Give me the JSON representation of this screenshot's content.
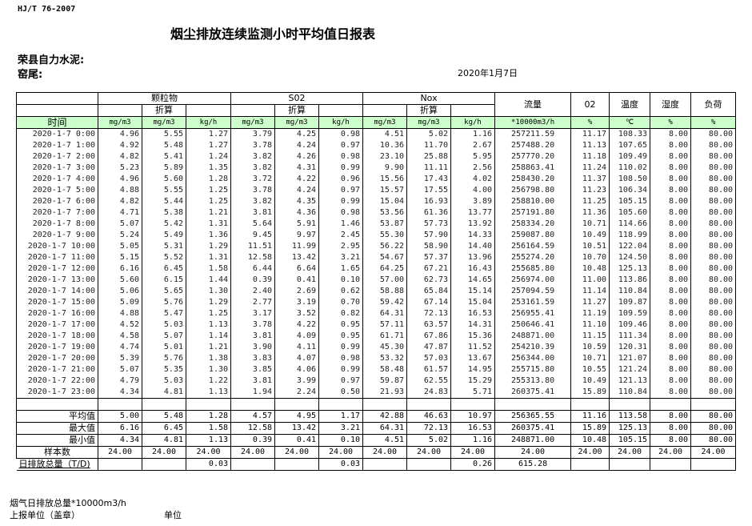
{
  "standard": "HJ/T  76-2007",
  "title": "烟尘排放连续监测小时平均值日报表",
  "company": "荣县自力水泥:",
  "kiln": "窑尾:",
  "date": "2020年1月7日",
  "header": {
    "groups": {
      "particulate": "颗粒物",
      "so2": "S02",
      "nox": "Nox",
      "flow": "流量",
      "o2": "02",
      "temp": "温度",
      "humidity": "湿度",
      "load": "负荷"
    },
    "converted": "折算",
    "time": "时间",
    "units": [
      "mg/m3",
      "mg/m3",
      "kg/h",
      "mg/m3",
      "mg/m3",
      "kg/h",
      "mg/m3",
      "mg/m3",
      "kg/h",
      "*10000m3/h",
      "%",
      "℃",
      "%",
      "%"
    ]
  },
  "colors": {
    "unit_row_bg": "#ccffcc"
  },
  "rows": [
    {
      "time": "2020-1-7 0:00",
      "values": [
        "4.96",
        "5.55",
        "1.27",
        "3.79",
        "4.25",
        "0.98",
        "4.51",
        "5.02",
        "1.16",
        "257211.59",
        "11.17",
        "108.33",
        "8.00",
        "80.00"
      ]
    },
    {
      "time": "2020-1-7 1:00",
      "values": [
        "4.92",
        "5.48",
        "1.27",
        "3.78",
        "4.24",
        "0.97",
        "10.36",
        "11.70",
        "2.67",
        "257488.20",
        "11.13",
        "107.65",
        "8.00",
        "80.00"
      ]
    },
    {
      "time": "2020-1-7 2:00",
      "values": [
        "4.82",
        "5.41",
        "1.24",
        "3.82",
        "4.26",
        "0.98",
        "23.10",
        "25.88",
        "5.95",
        "257770.20",
        "11.18",
        "109.49",
        "8.00",
        "80.00"
      ]
    },
    {
      "time": "2020-1-7 3:00",
      "values": [
        "5.23",
        "5.89",
        "1.35",
        "3.82",
        "4.31",
        "0.99",
        "9.90",
        "11.11",
        "2.56",
        "258863.41",
        "11.24",
        "110.02",
        "8.00",
        "80.00"
      ]
    },
    {
      "time": "2020-1-7 4:00",
      "values": [
        "4.96",
        "5.60",
        "1.28",
        "3.72",
        "4.22",
        "0.96",
        "15.56",
        "17.43",
        "4.02",
        "258430.20",
        "11.37",
        "108.50",
        "8.00",
        "80.00"
      ]
    },
    {
      "time": "2020-1-7 5:00",
      "values": [
        "4.88",
        "5.55",
        "1.25",
        "3.78",
        "4.24",
        "0.97",
        "15.57",
        "17.55",
        "4.00",
        "256798.80",
        "11.23",
        "106.34",
        "8.00",
        "80.00"
      ]
    },
    {
      "time": "2020-1-7 6:00",
      "values": [
        "4.82",
        "5.44",
        "1.25",
        "3.82",
        "4.35",
        "0.99",
        "15.04",
        "16.93",
        "3.89",
        "258810.00",
        "11.25",
        "105.15",
        "8.00",
        "80.00"
      ]
    },
    {
      "time": "2020-1-7 7:00",
      "values": [
        "4.71",
        "5.38",
        "1.21",
        "3.81",
        "4.36",
        "0.98",
        "53.56",
        "61.36",
        "13.77",
        "257191.80",
        "11.36",
        "105.60",
        "8.00",
        "80.00"
      ]
    },
    {
      "time": "2020-1-7 8:00",
      "values": [
        "5.07",
        "5.42",
        "1.31",
        "5.64",
        "5.91",
        "1.46",
        "53.87",
        "57.73",
        "13.92",
        "258334.20",
        "10.71",
        "114.66",
        "8.00",
        "80.00"
      ]
    },
    {
      "time": "2020-1-7 9:00",
      "values": [
        "5.24",
        "5.49",
        "1.36",
        "9.45",
        "9.97",
        "2.45",
        "55.30",
        "57.90",
        "14.33",
        "259087.80",
        "10.49",
        "118.99",
        "8.00",
        "80.00"
      ]
    },
    {
      "time": "2020-1-7 10:00",
      "values": [
        "5.05",
        "5.31",
        "1.29",
        "11.51",
        "11.99",
        "2.95",
        "56.22",
        "58.90",
        "14.40",
        "256164.59",
        "10.51",
        "122.04",
        "8.00",
        "80.00"
      ]
    },
    {
      "time": "2020-1-7 11:00",
      "values": [
        "5.15",
        "5.52",
        "1.31",
        "12.58",
        "13.42",
        "3.21",
        "54.67",
        "57.37",
        "13.96",
        "255274.20",
        "10.70",
        "124.50",
        "8.00",
        "80.00"
      ]
    },
    {
      "time": "2020-1-7 12:00",
      "values": [
        "6.16",
        "6.45",
        "1.58",
        "6.44",
        "6.64",
        "1.65",
        "64.25",
        "67.21",
        "16.43",
        "255685.80",
        "10.48",
        "125.13",
        "8.00",
        "80.00"
      ]
    },
    {
      "time": "2020-1-7 13:00",
      "values": [
        "5.60",
        "6.15",
        "1.44",
        "0.39",
        "0.41",
        "0.10",
        "57.00",
        "62.73",
        "14.65",
        "256974.00",
        "11.00",
        "113.86",
        "8.00",
        "80.00"
      ]
    },
    {
      "time": "2020-1-7 14:00",
      "values": [
        "5.06",
        "5.65",
        "1.30",
        "2.40",
        "2.69",
        "0.62",
        "58.88",
        "65.84",
        "15.14",
        "257094.59",
        "11.14",
        "110.84",
        "8.00",
        "80.00"
      ]
    },
    {
      "time": "2020-1-7 15:00",
      "values": [
        "5.09",
        "5.76",
        "1.29",
        "2.77",
        "3.19",
        "0.70",
        "59.42",
        "67.14",
        "15.04",
        "253161.59",
        "11.27",
        "109.87",
        "8.00",
        "80.00"
      ]
    },
    {
      "time": "2020-1-7 16:00",
      "values": [
        "4.88",
        "5.47",
        "1.25",
        "3.17",
        "3.52",
        "0.82",
        "64.31",
        "72.13",
        "16.53",
        "256955.41",
        "11.19",
        "109.59",
        "8.00",
        "80.00"
      ]
    },
    {
      "time": "2020-1-7 17:00",
      "values": [
        "4.52",
        "5.03",
        "1.13",
        "3.78",
        "4.22",
        "0.95",
        "57.11",
        "63.57",
        "14.31",
        "250646.41",
        "11.10",
        "109.46",
        "8.00",
        "80.00"
      ]
    },
    {
      "time": "2020-1-7 18:00",
      "values": [
        "4.58",
        "5.07",
        "1.14",
        "3.81",
        "4.09",
        "0.95",
        "61.71",
        "67.86",
        "15.36",
        "248871.00",
        "11.15",
        "111.34",
        "8.00",
        "80.00"
      ]
    },
    {
      "time": "2020-1-7 19:00",
      "values": [
        "4.74",
        "5.01",
        "1.21",
        "3.90",
        "4.11",
        "0.99",
        "45.30",
        "47.87",
        "11.52",
        "254210.39",
        "10.59",
        "120.31",
        "8.00",
        "80.00"
      ]
    },
    {
      "time": "2020-1-7 20:00",
      "values": [
        "5.39",
        "5.76",
        "1.38",
        "3.83",
        "4.07",
        "0.98",
        "53.32",
        "57.03",
        "13.67",
        "256344.00",
        "10.71",
        "121.07",
        "8.00",
        "80.00"
      ]
    },
    {
      "time": "2020-1-7 21:00",
      "values": [
        "5.07",
        "5.35",
        "1.30",
        "3.85",
        "4.06",
        "0.99",
        "58.48",
        "61.57",
        "14.95",
        "255715.80",
        "10.55",
        "121.24",
        "8.00",
        "80.00"
      ]
    },
    {
      "time": "2020-1-7 22:00",
      "values": [
        "4.79",
        "5.03",
        "1.22",
        "3.81",
        "3.99",
        "0.97",
        "59.87",
        "62.55",
        "15.29",
        "255313.80",
        "10.49",
        "121.13",
        "8.00",
        "80.00"
      ]
    },
    {
      "time": "2020-1-7 23:00",
      "values": [
        "4.34",
        "4.81",
        "1.13",
        "1.94",
        "2.24",
        "0.50",
        "21.93",
        "24.83",
        "5.71",
        "260375.41",
        "15.89",
        "110.84",
        "8.00",
        "80.00"
      ]
    }
  ],
  "summary": [
    {
      "label": "平均值",
      "values": [
        "5.00",
        "5.48",
        "1.28",
        "4.57",
        "4.95",
        "1.17",
        "42.88",
        "46.63",
        "10.97",
        "256365.55",
        "11.16",
        "113.58",
        "8.00",
        "80.00"
      ]
    },
    {
      "label": "最大值",
      "values": [
        "6.16",
        "6.45",
        "1.58",
        "12.58",
        "13.42",
        "3.21",
        "64.31",
        "72.13",
        "16.53",
        "260375.41",
        "15.89",
        "125.13",
        "8.00",
        "80.00"
      ]
    },
    {
      "label": "最小值",
      "values": [
        "4.34",
        "4.81",
        "1.13",
        "0.39",
        "0.41",
        "0.10",
        "4.51",
        "5.02",
        "1.16",
        "248871.00",
        "10.48",
        "105.15",
        "8.00",
        "80.00"
      ]
    },
    {
      "label": "样本数",
      "values": [
        "24.00",
        "24.00",
        "24.00",
        "24.00",
        "24.00",
        "24.00",
        "24.00",
        "24.00",
        "24.00",
        "24.00",
        "24.00",
        "24.00",
        "24.00",
        "24.00"
      ]
    },
    {
      "label": "日排放总量（T/D)",
      "values": [
        "",
        "",
        "0.03",
        "",
        "",
        "0.03",
        "",
        "",
        "0.26",
        "615.28",
        "",
        "",
        "",
        ""
      ]
    }
  ],
  "footer": {
    "flue_gas_total": "烟气日排放总量*10000m3/h",
    "reporting_unit": "上报单位（盖章）",
    "unit": "单位"
  }
}
